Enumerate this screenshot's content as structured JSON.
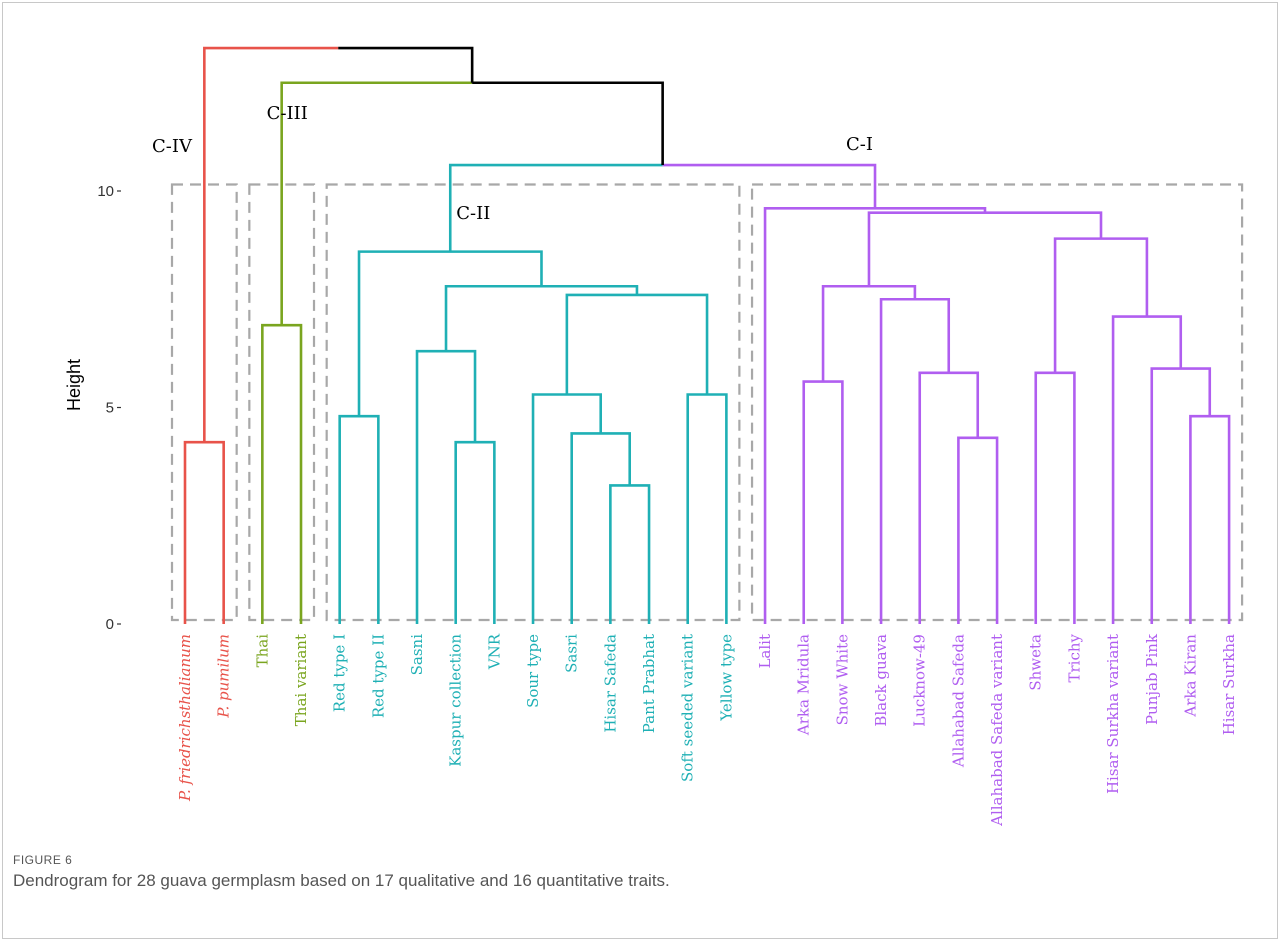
{
  "figure": {
    "label": "FIGURE 6",
    "caption": "Dendrogram for 28 guava germplasm based on 17 qualitative and 16 quantitative traits."
  },
  "chart_data": {
    "type": "dendrogram",
    "ylabel": "Height",
    "ylim": [
      0,
      13.3
    ],
    "yticks": [
      0,
      5,
      10
    ],
    "ytick_labels": [
      "0",
      "5",
      "10"
    ],
    "colors": {
      "C-IV": "#e8534a",
      "C-III": "#7aa51f",
      "C-II": "#1fb0b5",
      "C-I": "#b05ef0",
      "root": "#000000",
      "box": "#a8a8a8"
    },
    "leaves": [
      {
        "name": "P. friedrichsthalianum",
        "cluster": "C-IV",
        "italic": true
      },
      {
        "name": "P. pumilum",
        "cluster": "C-IV",
        "italic": true
      },
      {
        "name": "Thai",
        "cluster": "C-III"
      },
      {
        "name": "Thai variant",
        "cluster": "C-III"
      },
      {
        "name": "Red type I",
        "cluster": "C-II"
      },
      {
        "name": "Red type II",
        "cluster": "C-II"
      },
      {
        "name": "Sasni",
        "cluster": "C-II"
      },
      {
        "name": "Kaspur collection",
        "cluster": "C-II"
      },
      {
        "name": "VNR",
        "cluster": "C-II"
      },
      {
        "name": "Sour type",
        "cluster": "C-II"
      },
      {
        "name": "Sasri",
        "cluster": "C-II"
      },
      {
        "name": "Hisar Safeda",
        "cluster": "C-II"
      },
      {
        "name": "Pant Prabhat",
        "cluster": "C-II"
      },
      {
        "name": "Soft seeded variant",
        "cluster": "C-II"
      },
      {
        "name": "Yellow type",
        "cluster": "C-II"
      },
      {
        "name": "Lalit",
        "cluster": "C-I"
      },
      {
        "name": "Arka Mridula",
        "cluster": "C-I"
      },
      {
        "name": "Snow White",
        "cluster": "C-I"
      },
      {
        "name": "Black guava",
        "cluster": "C-I"
      },
      {
        "name": "Lucknow-49",
        "cluster": "C-I"
      },
      {
        "name": "Allahabad Safeda",
        "cluster": "C-I"
      },
      {
        "name": "Allahabad Safeda variant",
        "cluster": "C-I"
      },
      {
        "name": "Shweta",
        "cluster": "C-I"
      },
      {
        "name": "Trichy",
        "cluster": "C-I"
      },
      {
        "name": "Hisar Surkha variant",
        "cluster": "C-I"
      },
      {
        "name": "Punjab Pink",
        "cluster": "C-I"
      },
      {
        "name": "Arka Kiran",
        "cluster": "C-I"
      },
      {
        "name": "Hisar Surkha",
        "cluster": "C-I"
      }
    ],
    "merges": [
      {
        "a": "P. friedrichsthalianum",
        "b": "P. pumilum",
        "height": 4.2,
        "cluster": "C-IV"
      },
      {
        "a": "Thai",
        "b": "Thai variant",
        "height": 6.9,
        "cluster": "C-III"
      },
      {
        "a": "Red type I",
        "b": "Red type II",
        "height": 4.8,
        "cluster": "C-II"
      },
      {
        "a": "Kaspur collection",
        "b": "VNR",
        "height": 4.2,
        "cluster": "C-II"
      },
      {
        "a": "Sasni",
        "b": "Kaspur collection + VNR",
        "height": 6.3,
        "cluster": "C-II"
      },
      {
        "a": "Hisar Safeda",
        "b": "Pant Prabhat",
        "height": 3.2,
        "cluster": "C-II"
      },
      {
        "a": "Sasri",
        "b": "Hisar Safeda + Pant Prabhat",
        "height": 4.4,
        "cluster": "C-II"
      },
      {
        "a": "Sour type",
        "b": "Sasri group",
        "height": 5.3,
        "cluster": "C-II"
      },
      {
        "a": "Soft seeded variant",
        "b": "Yellow type",
        "height": 5.3,
        "cluster": "C-II"
      },
      {
        "a": "Sour type group",
        "b": "Soft seeded variant + Yellow type",
        "height": 7.6,
        "cluster": "C-II"
      },
      {
        "a": "Sasni group",
        "b": "Sour/Soft group",
        "height": 7.8,
        "cluster": "C-II"
      },
      {
        "a": "Red type group",
        "b": "Sasni/Sour group",
        "height": 8.6,
        "cluster": "C-II"
      },
      {
        "a": "Arka Mridula",
        "b": "Snow White",
        "height": 5.6,
        "cluster": "C-I"
      },
      {
        "a": "Allahabad Safeda",
        "b": "Allahabad Safeda variant",
        "height": 4.3,
        "cluster": "C-I"
      },
      {
        "a": "Lucknow-49",
        "b": "Allahabad Safeda group",
        "height": 5.8,
        "cluster": "C-I"
      },
      {
        "a": "Black guava",
        "b": "Lucknow-49 group",
        "height": 7.5,
        "cluster": "C-I"
      },
      {
        "a": "Arka Mridula group",
        "b": "Black guava group",
        "height": 7.8,
        "cluster": "C-I"
      },
      {
        "a": "Shweta",
        "b": "Trichy",
        "height": 5.8,
        "cluster": "C-I"
      },
      {
        "a": "Arka Kiran",
        "b": "Hisar Surkha",
        "height": 4.8,
        "cluster": "C-I"
      },
      {
        "a": "Punjab Pink",
        "b": "Arka Kiran + Hisar Surkha",
        "height": 5.9,
        "cluster": "C-I"
      },
      {
        "a": "Hisar Surkha variant",
        "b": "Punjab Pink group",
        "height": 7.1,
        "cluster": "C-I"
      },
      {
        "a": "Shweta + Trichy",
        "b": "Hisar Surkha variant group",
        "height": 8.9,
        "cluster": "C-I"
      },
      {
        "a": "Arka Mridula/Black guava group",
        "b": "Shweta/Hisar group",
        "height": 9.5,
        "cluster": "C-I"
      },
      {
        "a": "Lalit",
        "b": "remaining C-I",
        "height": 9.6,
        "cluster": "C-I"
      },
      {
        "a": "C-II",
        "b": "C-I",
        "height": 10.6,
        "cluster": "root"
      },
      {
        "a": "C-III",
        "b": "C-II + C-I",
        "height": 12.5,
        "cluster": "root"
      },
      {
        "a": "C-IV",
        "b": "C-III + C-II + C-I",
        "height": 13.3,
        "cluster": "root"
      }
    ],
    "cluster_labels": [
      {
        "text": "C-IV"
      },
      {
        "text": "C-III"
      },
      {
        "text": "C-II"
      },
      {
        "text": "C-I"
      }
    ]
  }
}
